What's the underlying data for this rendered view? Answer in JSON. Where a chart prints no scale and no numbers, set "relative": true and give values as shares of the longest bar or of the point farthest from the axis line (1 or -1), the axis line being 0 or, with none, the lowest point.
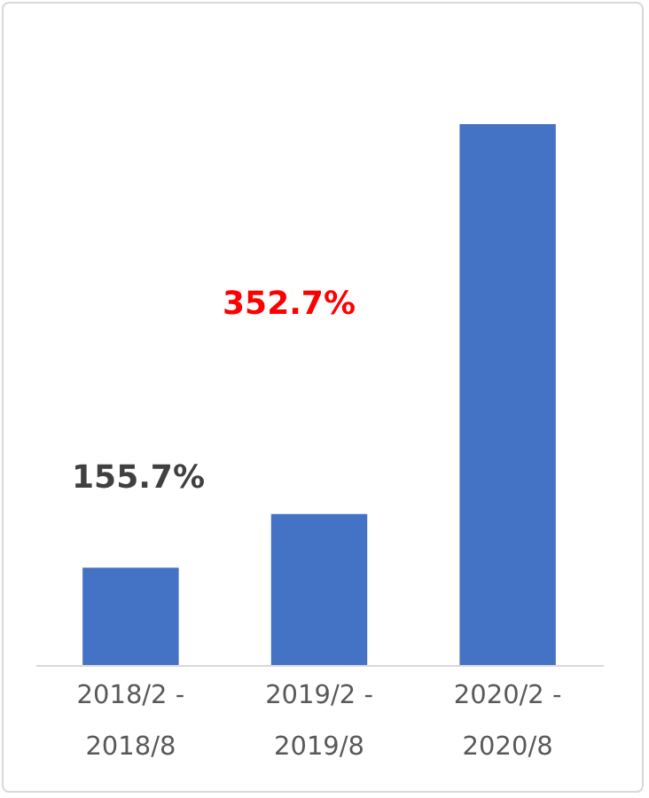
{
  "chart_data": {
    "type": "bar",
    "relative": true,
    "categories": [
      "2018/2 - 2018/8",
      "2019/2 - 2019/8",
      "2020/2 - 2020/8"
    ],
    "values": [
      0.18,
      0.279,
      1
    ],
    "color": "#4472c4",
    "annotations": [
      "155.7%",
      "352.7%"
    ]
  }
}
